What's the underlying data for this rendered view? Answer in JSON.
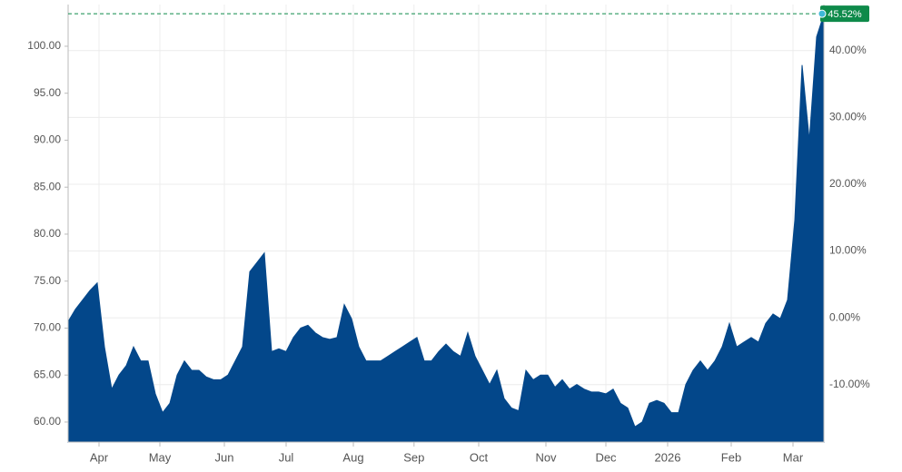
{
  "chart_data": {
    "type": "area",
    "color": "#03478a",
    "grid": true,
    "xlim": [
      0,
      104
    ],
    "xticks": [
      {
        "value": 4.25,
        "label": "Apr"
      },
      {
        "value": 12.625,
        "label": "May"
      },
      {
        "value": 21.5,
        "label": "Jun"
      },
      {
        "value": 30,
        "label": "Jul"
      },
      {
        "value": 39.25,
        "label": "Aug"
      },
      {
        "value": 47.6,
        "label": "Sep"
      },
      {
        "value": 56.5,
        "label": "Oct"
      },
      {
        "value": 65.75,
        "label": "Nov"
      },
      {
        "value": 74,
        "label": "Dec"
      },
      {
        "value": 82.5,
        "label": "2026"
      },
      {
        "value": 91.25,
        "label": "Feb"
      },
      {
        "value": 99.75,
        "label": "Mar"
      }
    ],
    "ylim": [
      57.87,
      104.44
    ],
    "yticks": [
      {
        "value": 60,
        "label": "60.00"
      },
      {
        "value": 65,
        "label": "65.00"
      },
      {
        "value": 70,
        "label": "70.00"
      },
      {
        "value": 75,
        "label": "75.00"
      },
      {
        "value": 80,
        "label": "80.00"
      },
      {
        "value": 85,
        "label": "85.00"
      },
      {
        "value": 90,
        "label": "90.00"
      },
      {
        "value": 95,
        "label": "95.00"
      },
      {
        "value": 100,
        "label": "100.00"
      }
    ],
    "y2lim": [
      -18.6,
      46.9
    ],
    "y2ticks": [
      {
        "value": -10,
        "label": "-10.00%"
      },
      {
        "value": 0,
        "label": "0.00%"
      },
      {
        "value": 10,
        "label": "10.00%"
      },
      {
        "value": 20,
        "label": "20.00%"
      },
      {
        "value": 30,
        "label": "30.00%"
      },
      {
        "value": 40,
        "label": "40.00%"
      }
    ],
    "annotation": {
      "value": 45.52,
      "label": "45.52%",
      "axis": "y2",
      "color": "#0e8a4a"
    },
    "values": [
      70.7,
      72,
      73,
      74,
      74.8,
      68,
      63.5,
      65,
      66,
      68,
      66.5,
      66.5,
      63,
      61,
      62,
      65,
      66.5,
      65.5,
      65.5,
      64.8,
      64.5,
      64.5,
      65,
      66.5,
      68,
      76,
      77,
      78,
      67.5,
      67.8,
      67.5,
      69,
      70,
      70.3,
      69.5,
      69,
      68.8,
      69,
      72.5,
      71,
      68,
      66.5,
      66.5,
      66.5,
      67,
      67.5,
      68,
      68.5,
      69,
      66.5,
      66.5,
      67.5,
      68.3,
      67.5,
      67,
      69.5,
      67,
      65.5,
      64,
      65.5,
      62.5,
      61.5,
      61.2,
      65.5,
      64.5,
      65,
      65,
      63.7,
      64.5,
      63.5,
      64,
      63.5,
      63.2,
      63.2,
      63,
      63.5,
      62,
      61.5,
      59.5,
      60,
      62,
      62.3,
      62,
      61,
      61,
      64,
      65.5,
      66.5,
      65.5,
      66.5,
      68,
      70.5,
      68,
      68.5,
      69,
      68.5,
      70.5,
      71.5,
      71,
      73,
      81.5,
      98,
      90,
      101,
      103.4
    ]
  }
}
